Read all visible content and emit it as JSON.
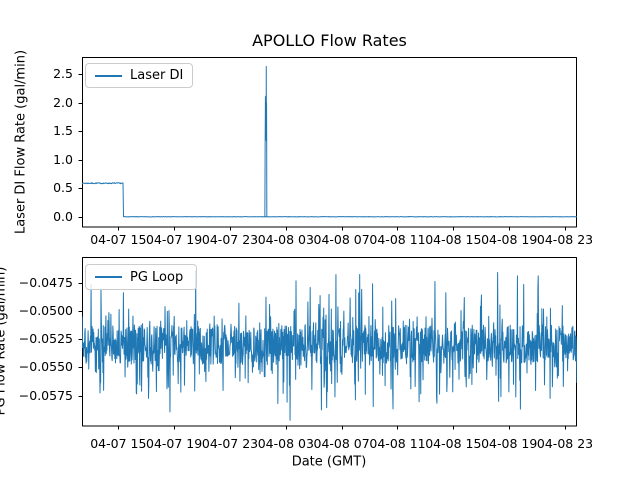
{
  "figure": {
    "background": "#ffffff",
    "accent": "#1f77b4",
    "axis_color": "#000000"
  },
  "chart_data": [
    {
      "type": "line",
      "title": "APOLLO Flow Rates",
      "ylabel": "Laser DI Flow Rate (gal/min)",
      "xlabel": "",
      "legend": {
        "label": "Laser DI",
        "loc": "upper left"
      },
      "grid": false,
      "x_unit": "hours since 04-07 12:00 GMT",
      "xlim": [
        0.4,
        35.86
      ],
      "xticks": [
        3,
        7,
        11,
        15,
        19,
        23,
        27,
        31,
        35
      ],
      "xtick_labels": [
        "04-07 15",
        "04-07 19",
        "04-07 23",
        "04-08 03",
        "04-08 07",
        "04-08 11",
        "04-08 15",
        "04-08 19",
        "04-08 23"
      ],
      "ylim": [
        -0.175,
        2.797
      ],
      "yticks": [
        0.0,
        0.5,
        1.0,
        1.5,
        2.0,
        2.5
      ],
      "ytick_labels": [
        "0.0",
        "0.5",
        "1.0",
        "1.5",
        "2.0",
        "2.5"
      ],
      "series": [
        {
          "name": "Laser DI",
          "color": "#1f77b4",
          "noise_seed": 7,
          "segments": [
            {
              "t_start": 0.4,
              "t_end": 3.36,
              "value": 0.59,
              "noise": 0.009
            },
            {
              "t_start": 3.36,
              "t_end": 35.86,
              "value": 0.004,
              "noise": 0.0035
            }
          ],
          "spike_profile": [
            [
              13.5,
              0.004
            ],
            [
              13.52,
              1.3
            ],
            [
              13.54,
              2.1
            ],
            [
              13.55,
              1.35
            ],
            [
              13.56,
              2.11
            ],
            [
              13.57,
              1.38
            ],
            [
              13.58,
              2.05
            ],
            [
              13.59,
              1.35
            ],
            [
              13.6,
              2.63
            ],
            [
              13.61,
              1.33
            ],
            [
              13.62,
              2.0
            ],
            [
              13.63,
              1.35
            ],
            [
              13.64,
              0.004
            ]
          ],
          "peak_value": 2.63,
          "step_drop_at": 3.36
        }
      ]
    },
    {
      "type": "line",
      "title": "",
      "ylabel": "PG Flow Rate (gal/min)",
      "xlabel": "Date (GMT)",
      "legend": {
        "label": "PG Loop",
        "loc": "upper left"
      },
      "grid": false,
      "x_unit": "hours since 04-07 12:00 GMT",
      "xlim": [
        0.4,
        35.86
      ],
      "xticks": [
        3,
        7,
        11,
        15,
        19,
        23,
        27,
        31,
        35
      ],
      "xtick_labels": [
        "04-07 15",
        "04-07 19",
        "04-07 23",
        "04-08 03",
        "04-08 07",
        "04-08 11",
        "04-08 15",
        "04-08 19",
        "04-08 23"
      ],
      "ylim": [
        -0.0602,
        -0.0452
      ],
      "yticks": [
        -0.0475,
        -0.05,
        -0.0525,
        -0.055,
        -0.0575
      ],
      "ytick_labels": [
        "−0.0475",
        "−0.0500",
        "−0.0525",
        "−0.0550",
        "−0.0575"
      ],
      "series": [
        {
          "name": "PG Loop",
          "color": "#1f77b4",
          "synthesis": {
            "n": 1500,
            "seed": 1337,
            "center": -0.053,
            "band_halfwidth": 0.00175,
            "spike_prob": 0.3,
            "spike_base": 0.0006,
            "spike_extra": 0.0048,
            "spike_pow": 2.2,
            "clip_low": -0.0597,
            "clip_high": -0.046
          }
        }
      ]
    }
  ]
}
